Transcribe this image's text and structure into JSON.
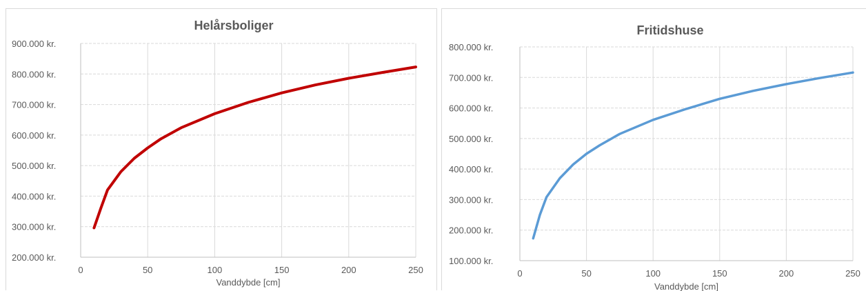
{
  "chart_data": [
    {
      "type": "line",
      "title": "Helårsboliger",
      "xlabel": "Vanddybde [cm]",
      "ylabel": "",
      "xlim": [
        0,
        250
      ],
      "ylim": [
        200000,
        900000
      ],
      "x_ticks": [
        "0",
        "50",
        "100",
        "150",
        "200",
        "250"
      ],
      "y_ticks": [
        "900.000 kr.",
        "800.000 kr.",
        "700.000 kr.",
        "600.000 kr.",
        "500.000 kr.",
        "400.000 kr.",
        "300.000 kr.",
        "200.000 kr."
      ],
      "grid": true,
      "legend": "none",
      "series": [
        {
          "color": "#c00000",
          "points": [
            [
              10,
              296000
            ],
            [
              15,
              360000
            ],
            [
              20,
              420000
            ],
            [
              30,
              480000
            ],
            [
              40,
              524000
            ],
            [
              50,
              558000
            ],
            [
              60,
              588000
            ],
            [
              75,
              624000
            ],
            [
              100,
              670000
            ],
            [
              125,
              707000
            ],
            [
              150,
              738000
            ],
            [
              175,
              764000
            ],
            [
              200,
              786000
            ],
            [
              225,
              805000
            ],
            [
              250,
              823000
            ]
          ]
        }
      ]
    },
    {
      "type": "line",
      "title": "Fritidshuse",
      "xlabel": "Vanddybde [cm]",
      "ylabel": "",
      "xlim": [
        0,
        250
      ],
      "ylim": [
        100000,
        800000
      ],
      "x_ticks": [
        "0",
        "50",
        "100",
        "150",
        "200",
        "250"
      ],
      "y_ticks": [
        "800.000 kr.",
        "700.000 kr.",
        "600.000 kr.",
        "500.000 kr.",
        "400.000 kr.",
        "300.000 kr.",
        "200.000 kr.",
        "100.000 kr."
      ],
      "grid": true,
      "legend": "none",
      "series": [
        {
          "color": "#5b9bd5",
          "points": [
            [
              10,
              173000
            ],
            [
              15,
              250000
            ],
            [
              20,
              308000
            ],
            [
              30,
              370000
            ],
            [
              40,
              415000
            ],
            [
              50,
              450000
            ],
            [
              60,
              478000
            ],
            [
              75,
              515000
            ],
            [
              100,
              561000
            ],
            [
              125,
              597000
            ],
            [
              150,
              630000
            ],
            [
              175,
              656000
            ],
            [
              200,
              678000
            ],
            [
              225,
              698000
            ],
            [
              250,
              716000
            ]
          ]
        }
      ]
    }
  ]
}
